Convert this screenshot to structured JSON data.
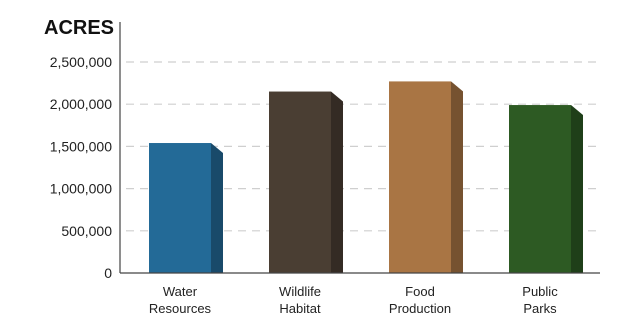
{
  "chart_data": {
    "type": "bar",
    "unit_label": "ACRES",
    "categories": [
      [
        "Water",
        "Resources"
      ],
      [
        "Wildlife",
        "Habitat"
      ],
      [
        "Food",
        "Production"
      ],
      [
        "Public",
        "Parks"
      ]
    ],
    "values": [
      1540000,
      2150000,
      2270000,
      1990000
    ],
    "colors": [
      "#236a97",
      "#4a3e33",
      "#a97544",
      "#2d5a23"
    ],
    "yticks": [
      0,
      500000,
      1000000,
      1500000,
      2000000,
      2500000
    ],
    "ytick_labels": [
      "0",
      "500,000",
      "1,000,000",
      "1,500,000",
      "2,000,000",
      "2,500,000"
    ],
    "ylim": [
      0,
      2500000
    ],
    "grid": true
  }
}
